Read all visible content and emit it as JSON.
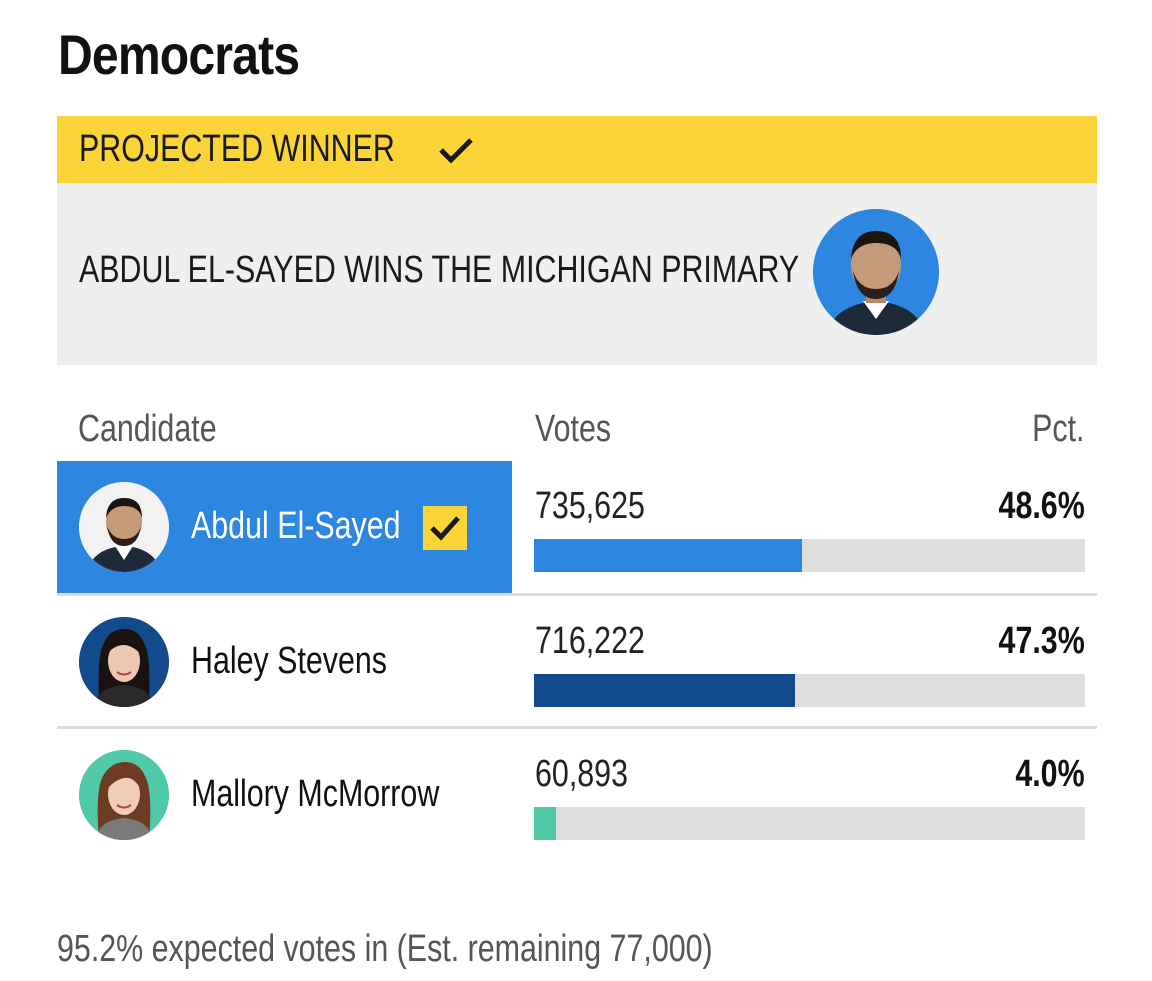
{
  "page": {
    "title": "Democrats"
  },
  "winner": {
    "banner_label": "PROJECTED WINNER",
    "headline": "ABDUL EL-SAYED WINS THE MICHIGAN PRIMARY",
    "banner_color": "#fbd437",
    "icon": "checkmark-icon"
  },
  "table": {
    "headers": {
      "candidate": "Candidate",
      "votes": "Votes",
      "pct": "Pct."
    },
    "rows": [
      {
        "name": "Abdul El-Sayed",
        "votes": "735,625",
        "pct": "48.6%",
        "share": 48.6,
        "bar_color": "#2d86e0",
        "avatar_bg": "#2d86e0",
        "winner": true,
        "selected": true
      },
      {
        "name": "Haley Stevens",
        "votes": "716,222",
        "pct": "47.3%",
        "share": 47.3,
        "bar_color": "#124a8c",
        "avatar_bg": "#124a8c",
        "winner": false,
        "selected": false
      },
      {
        "name": "Mallory McMorrow",
        "votes": "60,893",
        "pct": "4.0%",
        "share": 4.0,
        "bar_color": "#4fc9a8",
        "avatar_bg": "#4fc9a8",
        "winner": false,
        "selected": false
      }
    ]
  },
  "footer": {
    "text": "95.2% expected votes in (Est. remaining 77,000)"
  }
}
